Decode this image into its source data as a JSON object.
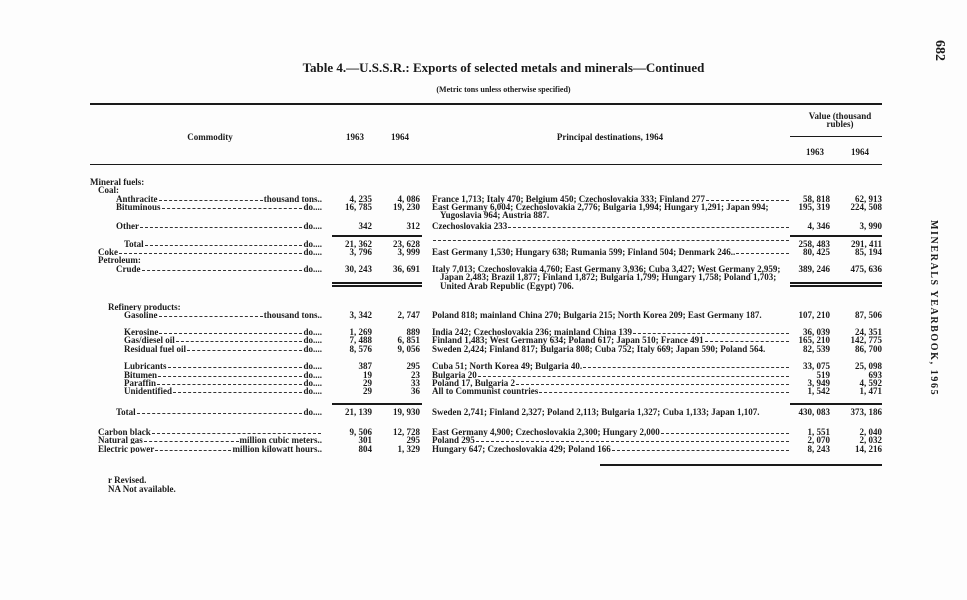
{
  "page_number": "682",
  "running_head": "MINERALS YEARBOOK, 1965",
  "title": "Table 4.—U.S.S.R.: Exports of selected metals and minerals—Continued",
  "subtitle": "(Metric tons unless otherwise specified)",
  "headers": {
    "commodity": "Commodity",
    "y1963": "1963",
    "y1964": "1964",
    "destinations": "Principal destinations, 1964",
    "value": "Value (thousand rubles)",
    "v1963": "1963",
    "v1964": "1964"
  },
  "rows": [
    {
      "commodity": "Mineral fuels:",
      "unit": "",
      "q1963": "",
      "q1964": "",
      "dest": "",
      "v1963": "",
      "v1964": ""
    },
    {
      "commodity": "Coal:",
      "unit": "",
      "q1963": "",
      "q1964": "",
      "dest": "",
      "v1963": "",
      "v1964": ""
    },
    {
      "commodity": "Anthracite",
      "unit": "thousand tons..",
      "q1963": "4, 235",
      "q1964": "4, 086",
      "dest": "France 1,713; Italy 470; Belgium 450; Czechoslovakia 333; Finland 277",
      "v1963": "58, 818",
      "v1964": "62, 913"
    },
    {
      "commodity": "Bituminous",
      "unit": "do....",
      "q1963": "16, 785",
      "q1964": "19, 230",
      "dest": "East Germany 6,004; Czechoslovakia 2,776; Bulgaria 1,994; Hungary 1,291; Japan 994; Yugoslavia 964; Austria 887.",
      "v1963": "195, 319",
      "v1964": "224, 508"
    },
    {
      "commodity": "Other",
      "unit": "do....",
      "q1963": "342",
      "q1964": "312",
      "dest": "Czechoslovakia 233",
      "v1963": "4, 346",
      "v1964": "3, 990"
    },
    {
      "commodity": "Total",
      "unit": "do....",
      "q1963": "21, 362",
      "q1964": "23, 628",
      "dest": "",
      "v1963": "258, 483",
      "v1964": "291, 411"
    },
    {
      "commodity": "Coke",
      "unit": "do....",
      "q1963": "3, 796",
      "q1964": "3, 999",
      "dest": "East Germany 1,530; Hungary 638; Rumania 599; Finland 504; Denmark 246..",
      "v1963": "80, 425",
      "v1964": "85, 194"
    },
    {
      "commodity": "Petroleum:",
      "unit": "",
      "q1963": "",
      "q1964": "",
      "dest": "",
      "v1963": "",
      "v1964": ""
    },
    {
      "commodity": "Crude",
      "unit": "do....",
      "q1963": "30, 243",
      "q1964": "36, 691",
      "dest": "Italy 7,013; Czechoslovakia 4,760; East Germany 3,936; Cuba 3,427; West Germany 2,959; Japan 2,483; Brazil 1,877; Finland 1,872; Bulgaria 1,799; Hungary 1,758; Poland 1,703; United Arab Republic (Egypt) 706.",
      "v1963": "389, 246",
      "v1964": "475, 636"
    },
    {
      "commodity": "Refinery products:",
      "unit": "",
      "q1963": "",
      "q1964": "",
      "dest": "",
      "v1963": "",
      "v1964": ""
    },
    {
      "commodity": "Gasoline",
      "unit": "thousand tons..",
      "q1963": "3, 342",
      "q1964": "2, 747",
      "dest": "Poland 818; mainland China 270; Bulgaria 215; North Korea 209; East Germany 187.",
      "v1963": "107, 210",
      "v1964": "87, 506"
    },
    {
      "commodity": "Kerosine",
      "unit": "do....",
      "q1963": "1, 269",
      "q1964": "889",
      "dest": "India 242; Czechoslovakia 236; mainland China 139",
      "v1963": "36, 039",
      "v1964": "24, 351"
    },
    {
      "commodity": "Gas/diesel oil",
      "unit": "do....",
      "q1963": "7, 488",
      "q1964": "6, 851",
      "dest": "Finland 1,483; West Germany 634; Poland 617; Japan 510; France 491",
      "v1963": "165, 210",
      "v1964": "142, 775"
    },
    {
      "commodity": "Residual fuel oil",
      "unit": "do....",
      "q1963": "8, 576",
      "q1964": "9, 056",
      "dest": "Sweden 2,424; Finland 817; Bulgaria 808; Cuba 752; Italy 669; Japan 590; Poland 564.",
      "v1963": "82, 539",
      "v1964": "86, 700"
    },
    {
      "commodity": "Lubricants",
      "unit": "do....",
      "q1963": "387",
      "q1964": "295",
      "dest": "Cuba 51; North Korea 49; Bulgaria 40.",
      "v1963": "33, 075",
      "v1964": "25, 098"
    },
    {
      "commodity": "Bitumen",
      "unit": "do....",
      "q1963": "19",
      "q1964": "23",
      "dest": "Bulgaria 20",
      "v1963": "519",
      "v1964": "693"
    },
    {
      "commodity": "Paraffin",
      "unit": "do....",
      "q1963": "29",
      "q1964": "33",
      "dest": "Poland 17, Bulgaria 2",
      "v1963": "3, 949",
      "v1964": "4, 592"
    },
    {
      "commodity": "Unidentified",
      "unit": "do....",
      "q1963": "29",
      "q1964": "36",
      "dest": "All to Communist countries",
      "v1963": "1, 542",
      "v1964": "1, 471"
    },
    {
      "commodity": "Total",
      "unit": "do....",
      "q1963": "21, 139",
      "q1964": "19, 930",
      "dest": "Sweden 2,741; Finland 2,327; Poland 2,113; Bulgaria 1,327; Cuba 1,133; Japan 1,107.",
      "v1963": "430, 083",
      "v1964": "373, 186"
    },
    {
      "commodity": "Carbon black",
      "unit": "",
      "q1963": "9, 506",
      "q1964": "12, 728",
      "dest": "East Germany 4,900; Czechoslovakia 2,300; Hungary 2,000",
      "v1963": "1, 551",
      "v1964": "2, 040"
    },
    {
      "commodity": "Natural gas",
      "unit": "million cubic meters..",
      "q1963": "301",
      "q1964": "295",
      "dest": "Poland 295",
      "v1963": "2, 070",
      "v1964": "2, 032"
    },
    {
      "commodity": "Electric power",
      "unit": "million kilowatt hours..",
      "q1963": "804",
      "q1964": "1, 329",
      "dest": "Hungary 647; Czechoslovakia 429; Poland 166",
      "v1963": "8, 243",
      "v1964": "14, 216"
    }
  ],
  "footnotes": [
    "r Revised.",
    "NA Not available."
  ]
}
